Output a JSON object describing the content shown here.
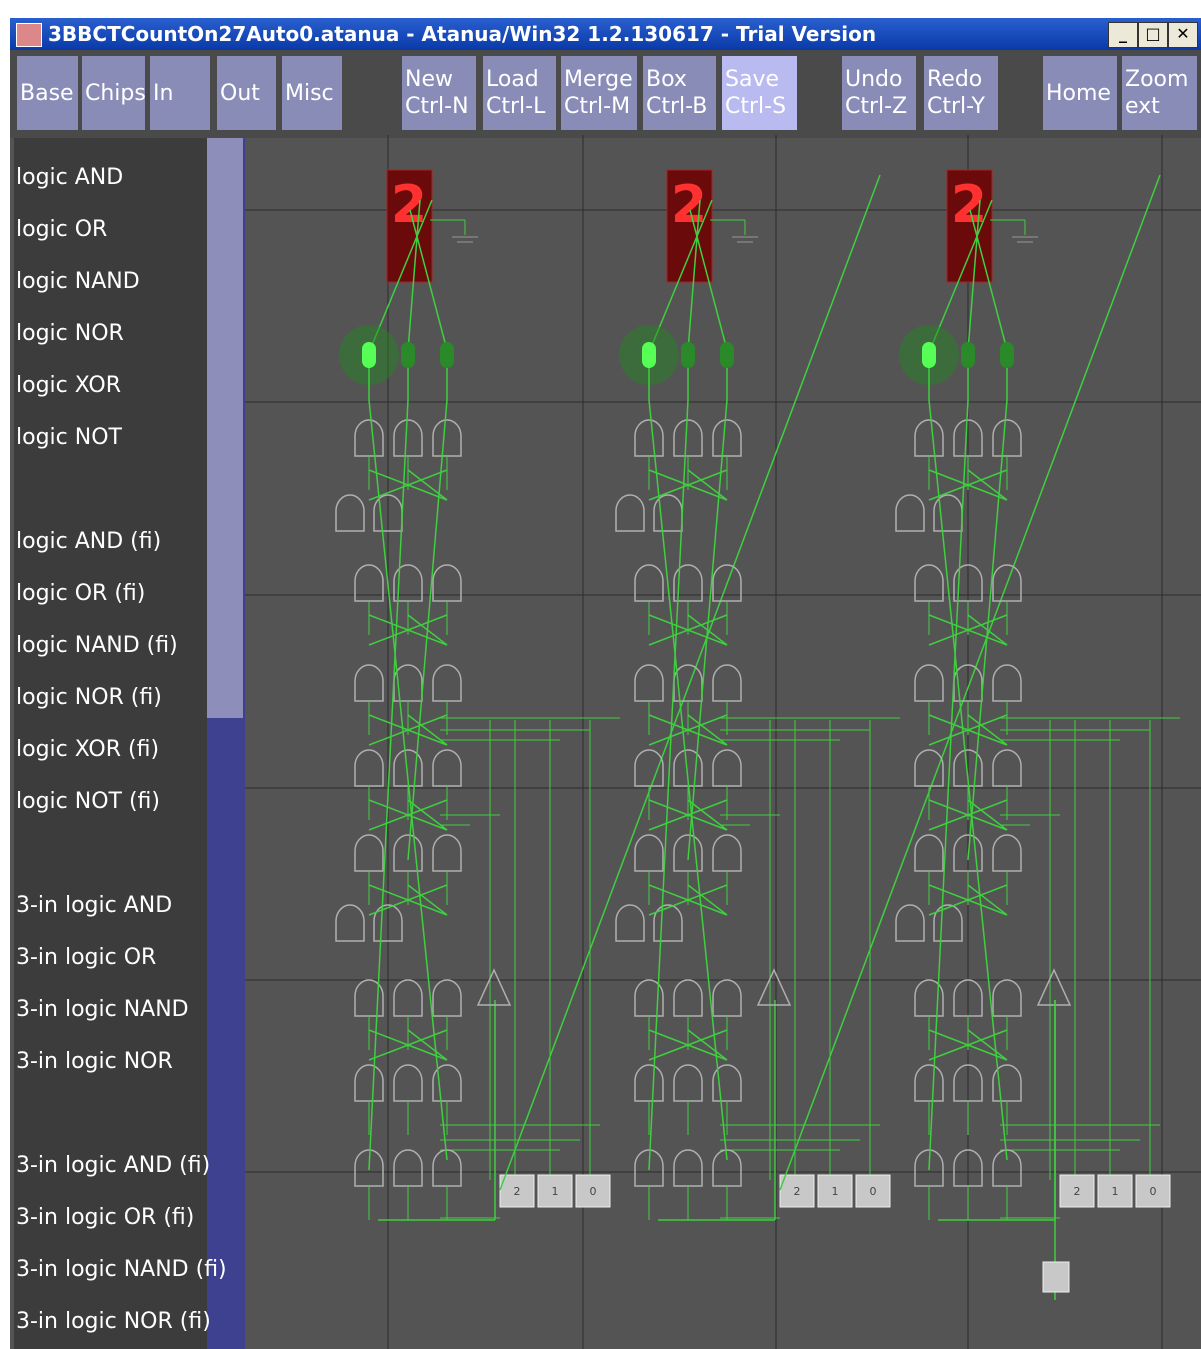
{
  "window": {
    "title": "3BBCTCountOn27Auto0.atanua - Atanua/Win32 1.2.130617 - Trial Version"
  },
  "toolbar": [
    {
      "lines": [
        "Base"
      ]
    },
    {
      "lines": [
        "Chips"
      ]
    },
    {
      "lines": [
        "In"
      ]
    },
    {
      "lines": [
        "Out"
      ]
    },
    {
      "lines": [
        "Misc"
      ]
    },
    {
      "lines": [
        "New",
        "Ctrl-N"
      ]
    },
    {
      "lines": [
        "Load",
        "Ctrl-L"
      ]
    },
    {
      "lines": [
        "Merge",
        "Ctrl-M"
      ]
    },
    {
      "lines": [
        "Box",
        "Ctrl-B"
      ]
    },
    {
      "lines": [
        "Save",
        "Ctrl-S"
      ]
    },
    {
      "lines": [
        "Undo",
        "Ctrl-Z"
      ]
    },
    {
      "lines": [
        "Redo",
        "Ctrl-Y"
      ]
    },
    {
      "lines": [
        "Home"
      ]
    },
    {
      "lines": [
        "Zoom",
        "ext"
      ]
    }
  ],
  "sidebar": [
    "logic AND",
    "logic OR",
    "logic NAND",
    "logic NOR",
    "logic XOR",
    "logic NOT",
    null,
    "logic AND (fi)",
    "logic OR (fi)",
    "logic NAND (fi)",
    "logic NOR (fi)",
    "logic XOR (fi)",
    "logic NOT (fi)",
    null,
    "3-in logic AND",
    "3-in logic OR",
    "3-in logic NAND",
    "3-in logic NOR",
    null,
    "3-in logic AND (fi)",
    "3-in logic OR (fi)",
    "3-in logic NAND (fi)",
    "3-in logic NOR (fi)"
  ],
  "circuits": [
    {
      "display": "2",
      "switches": [
        "2",
        "1",
        "0"
      ]
    },
    {
      "display": "2",
      "switches": [
        "2",
        "1",
        "0"
      ]
    },
    {
      "display": "2",
      "switches": [
        "2",
        "1",
        "0"
      ]
    }
  ]
}
